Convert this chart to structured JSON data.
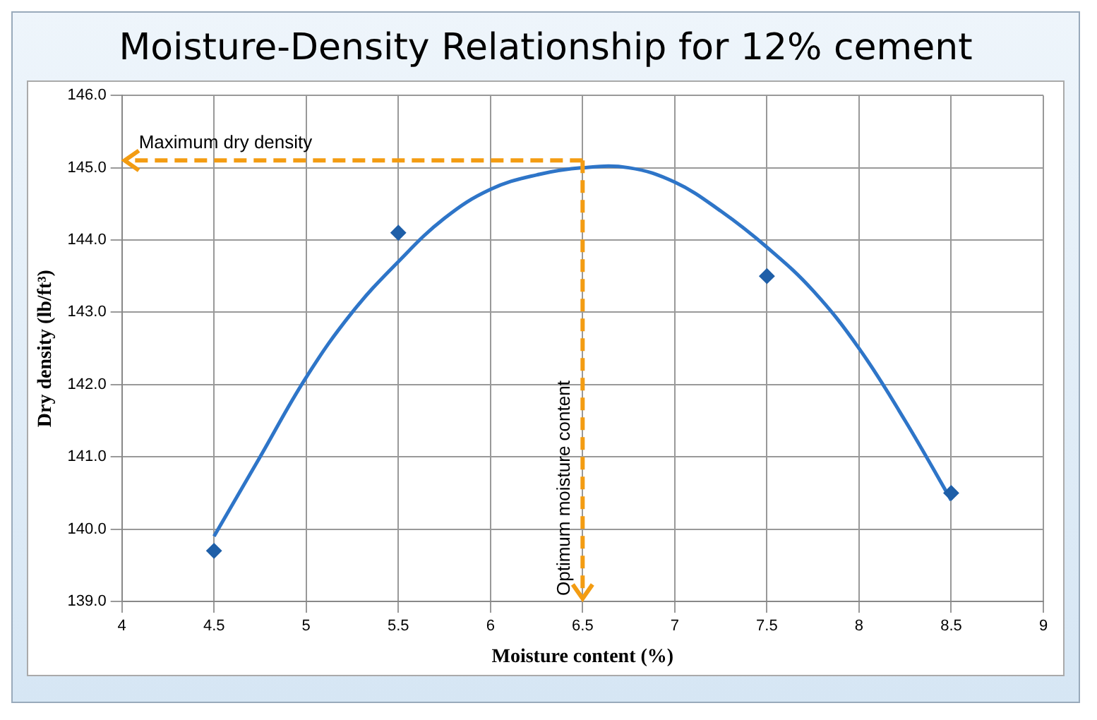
{
  "chart_data": {
    "type": "scatter",
    "title": "Moisture-Density Relationship for 12% cement",
    "xlabel": "Moisture content (%)",
    "ylabel": "Dry density (lb/ft³)",
    "xlim": [
      4,
      9
    ],
    "xticks": [
      4,
      4.5,
      5,
      5.5,
      6,
      6.5,
      7,
      7.5,
      8,
      8.5,
      9
    ],
    "ylim": [
      139,
      146
    ],
    "yticks": [
      {
        "value": 139,
        "label": "139.0"
      },
      {
        "value": 140,
        "label": "140.0"
      },
      {
        "value": 141,
        "label": "141.0"
      },
      {
        "value": 142,
        "label": "142.0"
      },
      {
        "value": 143,
        "label": "143.0"
      },
      {
        "value": 144,
        "label": "144.0"
      },
      {
        "value": 145,
        "label": "145.0"
      },
      {
        "value": 146,
        "label": "146.0"
      }
    ],
    "grid": true,
    "series": [
      {
        "type": "scatter",
        "color": "#1f5fa8",
        "marker": "diamond",
        "x": [
          4.5,
          5.5,
          7.5,
          8.5
        ],
        "values": [
          139.7,
          144.1,
          143.5,
          140.5
        ]
      },
      {
        "type": "line",
        "color": "#2e75c8",
        "marker": "none",
        "x": [
          4.5,
          4.75,
          5,
          5.25,
          5.5,
          5.75,
          6,
          6.25,
          6.5,
          6.75,
          7,
          7.25,
          7.5,
          7.75,
          8,
          8.25,
          8.5
        ],
        "values": [
          139.9,
          141.0,
          142.1,
          143.0,
          143.7,
          144.3,
          144.7,
          144.9,
          145.0,
          145.0,
          144.8,
          144.4,
          143.9,
          143.3,
          142.5,
          141.5,
          140.4
        ]
      }
    ],
    "ref_lines": [
      {
        "axis": "y",
        "value": 145.1,
        "label": "Maximum dry density",
        "color": "#f39c12",
        "line_style": "dashed"
      },
      {
        "axis": "x",
        "value": 6.5,
        "label": "Optimum moisture content",
        "color": "#f39c12",
        "line_style": "dashed"
      }
    ]
  }
}
